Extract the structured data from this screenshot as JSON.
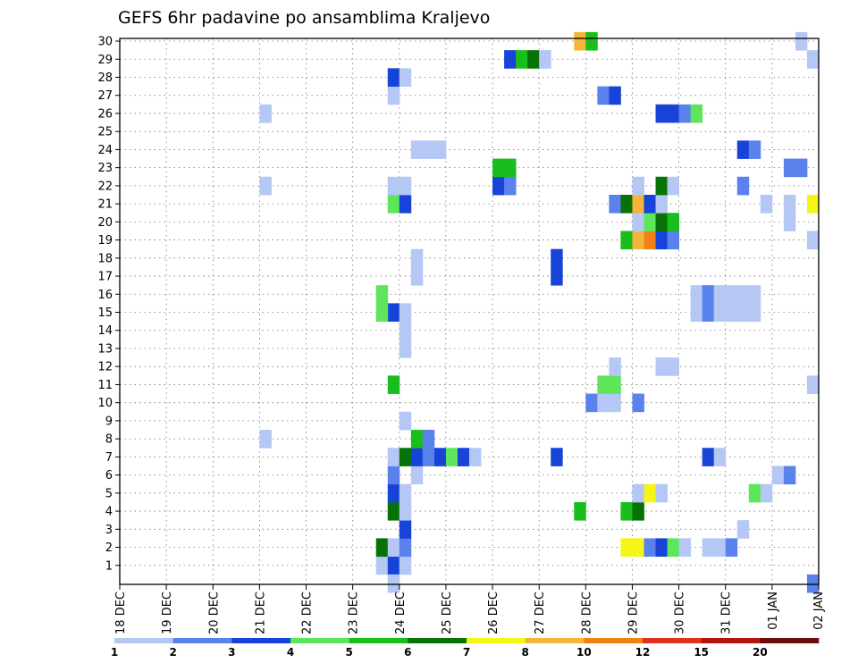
{
  "chart_data": {
    "type": "heatmap",
    "title": "GEFS 6hr padavine po ansamblima Kraljevo",
    "xlabel": "",
    "ylabel": "",
    "x_tick_labels": [
      "18 DEC",
      "19 DEC",
      "20 DEC",
      "21 DEC",
      "22 DEC",
      "23 DEC",
      "24 DEC",
      "25 DEC",
      "26 DEC",
      "27 DEC",
      "28 DEC",
      "29 DEC",
      "30 DEC",
      "31 DEC",
      "01 JAN",
      "02 JAN"
    ],
    "y_tick_labels": [
      "1",
      "2",
      "3",
      "4",
      "5",
      "6",
      "7",
      "8",
      "9",
      "10",
      "11",
      "12",
      "13",
      "14",
      "15",
      "16",
      "17",
      "18",
      "19",
      "20",
      "21",
      "22",
      "23",
      "24",
      "25",
      "26",
      "27",
      "28",
      "29",
      "30"
    ],
    "x_unit": "6-hour step (4 per day), step 0 = 18 DEC 00z",
    "grid": true,
    "levels": [
      1,
      2,
      3,
      4,
      5,
      6,
      7,
      8,
      10,
      12,
      15,
      20
    ],
    "colors": [
      "#b4c7f5",
      "#5a82ec",
      "#1743d9",
      "#5ee65a",
      "#19be1c",
      "#077307",
      "#f5f518",
      "#f5b43c",
      "#f08214",
      "#e0321e",
      "#b4140f",
      "#6e0a0a"
    ],
    "cells": [
      [
        1,
        22,
        0
      ],
      [
        1,
        23,
        2
      ],
      [
        1,
        24,
        0
      ],
      [
        2,
        22,
        5
      ],
      [
        2,
        23,
        0
      ],
      [
        2,
        24,
        1
      ],
      [
        2,
        43,
        6
      ],
      [
        2,
        44,
        6
      ],
      [
        2,
        45,
        1
      ],
      [
        2,
        46,
        2
      ],
      [
        2,
        47,
        3
      ],
      [
        2,
        48,
        0
      ],
      [
        2,
        50,
        0
      ],
      [
        2,
        51,
        0
      ],
      [
        2,
        52,
        1
      ],
      [
        3,
        24,
        2
      ],
      [
        3,
        53,
        0
      ],
      [
        4,
        23,
        5
      ],
      [
        4,
        24,
        0
      ],
      [
        4,
        39,
        4
      ],
      [
        4,
        43,
        4
      ],
      [
        4,
        44,
        5
      ],
      [
        5,
        23,
        2
      ],
      [
        5,
        24,
        0
      ],
      [
        5,
        44,
        0
      ],
      [
        5,
        45,
        6
      ],
      [
        5,
        46,
        0
      ],
      [
        5,
        54,
        3
      ],
      [
        5,
        55,
        0
      ],
      [
        6,
        23,
        1
      ],
      [
        6,
        25,
        0
      ],
      [
        6,
        56,
        0
      ],
      [
        6,
        57,
        1
      ],
      [
        7,
        23,
        0
      ],
      [
        7,
        24,
        5
      ],
      [
        7,
        25,
        2
      ],
      [
        7,
        26,
        1
      ],
      [
        7,
        27,
        2
      ],
      [
        7,
        28,
        3
      ],
      [
        7,
        29,
        2
      ],
      [
        7,
        30,
        0
      ],
      [
        7,
        37,
        2
      ],
      [
        7,
        50,
        2
      ],
      [
        7,
        51,
        0
      ],
      [
        8,
        12,
        0
      ],
      [
        8,
        25,
        4
      ],
      [
        8,
        26,
        1
      ],
      [
        9,
        24,
        0
      ],
      [
        10,
        40,
        1
      ],
      [
        10,
        41,
        0
      ],
      [
        10,
        42,
        0
      ],
      [
        10,
        44,
        1
      ],
      [
        11,
        23,
        4
      ],
      [
        11,
        41,
        3
      ],
      [
        11,
        42,
        3
      ],
      [
        11,
        59,
        0
      ],
      [
        12,
        42,
        0
      ],
      [
        12,
        46,
        0
      ],
      [
        12,
        47,
        0
      ],
      [
        13,
        24,
        0
      ],
      [
        14,
        24,
        0
      ],
      [
        15,
        23,
        2
      ],
      [
        15,
        24,
        0
      ],
      [
        15,
        22,
        3
      ],
      [
        15,
        49,
        0
      ],
      [
        15,
        50,
        1
      ],
      [
        15,
        51,
        0
      ],
      [
        15,
        52,
        0
      ],
      [
        15,
        53,
        0
      ],
      [
        15,
        54,
        0
      ],
      [
        16,
        22,
        3
      ],
      [
        16,
        49,
        0
      ],
      [
        16,
        50,
        1
      ],
      [
        16,
        51,
        0
      ],
      [
        16,
        52,
        0
      ],
      [
        16,
        53,
        0
      ],
      [
        16,
        54,
        0
      ],
      [
        17,
        25,
        0
      ],
      [
        17,
        37,
        2
      ],
      [
        18,
        25,
        0
      ],
      [
        18,
        37,
        2
      ],
      [
        19,
        43,
        4
      ],
      [
        19,
        44,
        7
      ],
      [
        19,
        45,
        8
      ],
      [
        19,
        46,
        2
      ],
      [
        19,
        47,
        1
      ],
      [
        19,
        59,
        0
      ],
      [
        20,
        44,
        0
      ],
      [
        20,
        45,
        3
      ],
      [
        20,
        46,
        5
      ],
      [
        20,
        47,
        4
      ],
      [
        20,
        57,
        0
      ],
      [
        21,
        23,
        3
      ],
      [
        21,
        24,
        2
      ],
      [
        21,
        42,
        1
      ],
      [
        21,
        43,
        5
      ],
      [
        21,
        44,
        7
      ],
      [
        21,
        45,
        2
      ],
      [
        21,
        46,
        0
      ],
      [
        21,
        55,
        0
      ],
      [
        21,
        57,
        0
      ],
      [
        21,
        59,
        6
      ],
      [
        22,
        12,
        0
      ],
      [
        22,
        23,
        0
      ],
      [
        22,
        24,
        0
      ],
      [
        22,
        32,
        2
      ],
      [
        22,
        33,
        1
      ],
      [
        22,
        44,
        0
      ],
      [
        22,
        46,
        5
      ],
      [
        22,
        47,
        0
      ],
      [
        22,
        53,
        1
      ],
      [
        23,
        32,
        4
      ],
      [
        23,
        33,
        4
      ],
      [
        23,
        57,
        1
      ],
      [
        23,
        58,
        1
      ],
      [
        24,
        25,
        0
      ],
      [
        24,
        26,
        0
      ],
      [
        24,
        27,
        0
      ],
      [
        24,
        53,
        2
      ],
      [
        24,
        54,
        1
      ],
      [
        26,
        12,
        0
      ],
      [
        26,
        46,
        2
      ],
      [
        26,
        47,
        2
      ],
      [
        26,
        48,
        1
      ],
      [
        26,
        49,
        3
      ],
      [
        27,
        23,
        0
      ],
      [
        27,
        41,
        1
      ],
      [
        27,
        42,
        2
      ],
      [
        28,
        23,
        2
      ],
      [
        28,
        24,
        0
      ],
      [
        29,
        33,
        2
      ],
      [
        29,
        34,
        4
      ],
      [
        29,
        35,
        5
      ],
      [
        29,
        36,
        0
      ],
      [
        29,
        59,
        0
      ],
      [
        30,
        39,
        7
      ],
      [
        30,
        40,
        4
      ],
      [
        30,
        58,
        0
      ],
      [
        0,
        23,
        0
      ],
      [
        0,
        59,
        1
      ]
    ]
  }
}
